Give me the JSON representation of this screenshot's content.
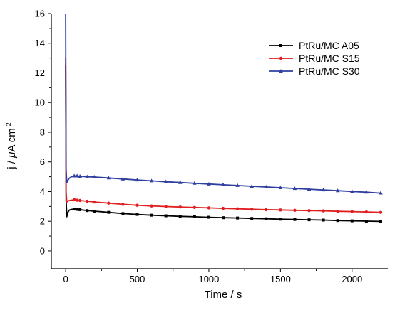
{
  "chart_data": {
    "type": "line",
    "title": "",
    "xlabel": "Time / s",
    "ylabel_parts": {
      "prefix": "j / ",
      "mu": "μ",
      "unit": "A cm",
      "exp": "-2"
    },
    "xlim": [
      -100,
      2250
    ],
    "ylim": [
      -1.2,
      16
    ],
    "xticks": [
      0,
      500,
      1000,
      1500,
      2000
    ],
    "xtick_labels": [
      "0",
      "500",
      "1000",
      "1500",
      "2000"
    ],
    "yticks": [
      0,
      2,
      4,
      6,
      8,
      10,
      12,
      14,
      16
    ],
    "ytick_labels": [
      "0",
      "2",
      "4",
      "6",
      "8",
      "10",
      "12",
      "14",
      "16"
    ],
    "grid": false,
    "legend_position": "top-right",
    "series": [
      {
        "name": "PtRu/MC A05",
        "color": "#000000",
        "marker": "square",
        "x": [
          0,
          3,
          8,
          15,
          25,
          40,
          60,
          80,
          100,
          150,
          200,
          300,
          400,
          500,
          600,
          700,
          800,
          900,
          1000,
          1100,
          1200,
          1300,
          1400,
          1500,
          1600,
          1700,
          1800,
          1900,
          2000,
          2100,
          2200
        ],
        "y": [
          12.5,
          3.5,
          2.3,
          2.6,
          2.75,
          2.8,
          2.82,
          2.8,
          2.78,
          2.72,
          2.68,
          2.6,
          2.52,
          2.46,
          2.41,
          2.37,
          2.33,
          2.3,
          2.27,
          2.24,
          2.22,
          2.19,
          2.17,
          2.14,
          2.12,
          2.1,
          2.08,
          2.05,
          2.03,
          2.01,
          1.99
        ]
      },
      {
        "name": "PtRu/MC S15",
        "color": "#e02020",
        "marker": "circle",
        "x": [
          0,
          3,
          8,
          15,
          25,
          40,
          60,
          80,
          100,
          150,
          200,
          300,
          400,
          500,
          600,
          700,
          800,
          900,
          1000,
          1100,
          1200,
          1300,
          1400,
          1500,
          1600,
          1700,
          1800,
          1900,
          2000,
          2100,
          2200
        ],
        "y": [
          13.0,
          4.0,
          3.3,
          3.35,
          3.4,
          3.42,
          3.45,
          3.42,
          3.4,
          3.35,
          3.3,
          3.22,
          3.14,
          3.08,
          3.03,
          2.99,
          2.96,
          2.93,
          2.9,
          2.87,
          2.84,
          2.81,
          2.78,
          2.76,
          2.74,
          2.72,
          2.7,
          2.67,
          2.65,
          2.63,
          2.6
        ]
      },
      {
        "name": "PtRu/MC S30",
        "color": "#2f3f9f",
        "marker": "triangle",
        "x": [
          0,
          3,
          8,
          15,
          25,
          40,
          60,
          80,
          100,
          150,
          200,
          300,
          400,
          500,
          600,
          700,
          800,
          900,
          1000,
          1100,
          1200,
          1300,
          1400,
          1500,
          1600,
          1700,
          1800,
          1900,
          2000,
          2100,
          2200
        ],
        "y": [
          16.0,
          5.5,
          4.6,
          4.75,
          4.9,
          5.0,
          5.05,
          5.05,
          5.03,
          5.0,
          4.98,
          4.92,
          4.85,
          4.78,
          4.72,
          4.66,
          4.61,
          4.56,
          4.51,
          4.46,
          4.41,
          4.36,
          4.31,
          4.26,
          4.21,
          4.16,
          4.11,
          4.06,
          4.01,
          3.96,
          3.9
        ]
      }
    ]
  }
}
